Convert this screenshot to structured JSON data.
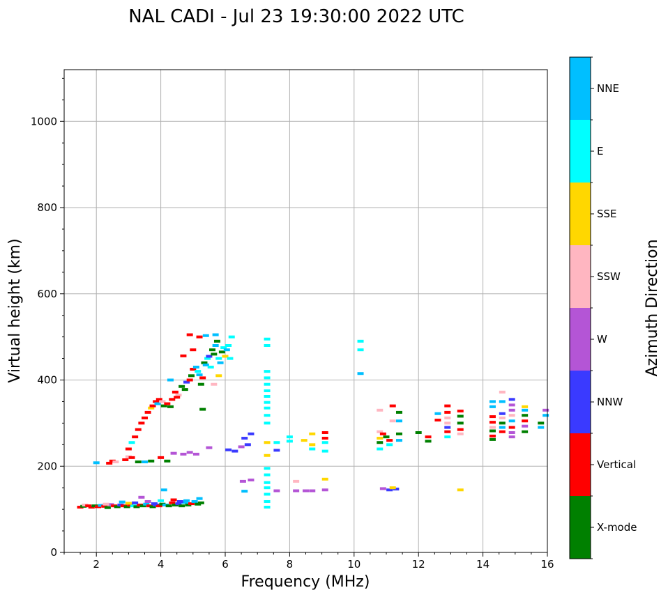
{
  "chart_data": {
    "type": "scatter",
    "title": "NAL CADI - Jul 23 19:30:00 2022 UTC",
    "xlabel": "Frequency (MHz)",
    "ylabel": "Virtual height (km)",
    "xlim": [
      1,
      16
    ],
    "ylim": [
      0,
      1120
    ],
    "xticks": [
      2,
      4,
      6,
      8,
      10,
      12,
      14,
      16
    ],
    "yticks": [
      0,
      200,
      400,
      600,
      800,
      1000
    ],
    "grid": true,
    "colorbar": {
      "label": "Azimuth Direction",
      "categories": [
        {
          "name": "X-mode",
          "color": "#008000"
        },
        {
          "name": "Vertical",
          "color": "#ff0000"
        },
        {
          "name": "NNW",
          "color": "#3a3aff"
        },
        {
          "name": "W",
          "color": "#b455d6"
        },
        {
          "name": "SSW",
          "color": "#ffb6c1"
        },
        {
          "name": "SSE",
          "color": "#ffd700"
        },
        {
          "name": "E",
          "color": "#00ffff"
        },
        {
          "name": "NNE",
          "color": "#00bfff"
        }
      ]
    },
    "points": [
      [
        1.5,
        105,
        "Vertical"
      ],
      [
        1.6,
        107,
        "X-mode"
      ],
      [
        1.65,
        110,
        "SSW"
      ],
      [
        1.75,
        108,
        "Vertical"
      ],
      [
        1.85,
        105,
        "Vertical"
      ],
      [
        1.95,
        108,
        "X-mode"
      ],
      [
        2.05,
        106,
        "Vertical"
      ],
      [
        2.15,
        109,
        "NNE"
      ],
      [
        2.25,
        107,
        "Vertical"
      ],
      [
        2.35,
        104,
        "X-mode"
      ],
      [
        2.45,
        111,
        "W"
      ],
      [
        2.55,
        108,
        "Vertical"
      ],
      [
        2.65,
        106,
        "X-mode"
      ],
      [
        2.75,
        110,
        "NNW"
      ],
      [
        2.85,
        108,
        "Vertical"
      ],
      [
        2.95,
        106,
        "X-mode"
      ],
      [
        3.05,
        110,
        "Vertical"
      ],
      [
        3.15,
        108,
        "E"
      ],
      [
        3.25,
        106,
        "X-mode"
      ],
      [
        3.35,
        110,
        "Vertical"
      ],
      [
        3.45,
        108,
        "X-mode"
      ],
      [
        3.55,
        112,
        "NNE"
      ],
      [
        3.65,
        108,
        "Vertical"
      ],
      [
        3.75,
        106,
        "X-mode"
      ],
      [
        3.85,
        110,
        "NNW"
      ],
      [
        3.95,
        108,
        "Vertical"
      ],
      [
        4.05,
        112,
        "X-mode"
      ],
      [
        4.15,
        110,
        "NNE"
      ],
      [
        4.25,
        108,
        "X-mode"
      ],
      [
        4.35,
        115,
        "Vertical"
      ],
      [
        4.45,
        110,
        "X-mode"
      ],
      [
        4.55,
        113,
        "NNW"
      ],
      [
        4.65,
        108,
        "X-mode"
      ],
      [
        4.75,
        116,
        "NNE"
      ],
      [
        4.85,
        110,
        "X-mode"
      ],
      [
        4.95,
        113,
        "Vertical"
      ],
      [
        5.05,
        118,
        "NNE"
      ],
      [
        5.15,
        112,
        "X-mode"
      ],
      [
        5.25,
        115,
        "X-mode"
      ],
      [
        2.8,
        117,
        "NNE"
      ],
      [
        3.2,
        115,
        "NNW"
      ],
      [
        3.6,
        118,
        "W"
      ],
      [
        4.0,
        120,
        "E"
      ],
      [
        4.4,
        122,
        "Vertical"
      ],
      [
        4.8,
        120,
        "NNE"
      ],
      [
        5.2,
        125,
        "NNE"
      ],
      [
        4.1,
        145,
        "NNE"
      ],
      [
        3.4,
        128,
        "W"
      ],
      [
        3.0,
        114,
        "SSE"
      ],
      [
        2.3,
        112,
        "SSW"
      ],
      [
        3.8,
        113,
        "NNW"
      ],
      [
        4.6,
        118,
        "NNW"
      ],
      [
        2.0,
        208,
        "NNE"
      ],
      [
        2.4,
        207,
        "Vertical"
      ],
      [
        2.5,
        212,
        "Vertical"
      ],
      [
        2.6,
        210,
        "SSW"
      ],
      [
        2.9,
        215,
        "Vertical"
      ],
      [
        3.0,
        222,
        "SSW"
      ],
      [
        3.1,
        220,
        "Vertical"
      ],
      [
        3.3,
        210,
        "X-mode"
      ],
      [
        3.5,
        210,
        "NNE"
      ],
      [
        3.7,
        212,
        "X-mode"
      ],
      [
        4.0,
        220,
        "Vertical"
      ],
      [
        4.2,
        212,
        "X-mode"
      ],
      [
        4.4,
        230,
        "W"
      ],
      [
        4.7,
        228,
        "W"
      ],
      [
        4.9,
        232,
        "W"
      ],
      [
        5.1,
        228,
        "W"
      ],
      [
        5.5,
        243,
        "W"
      ],
      [
        3.0,
        240,
        "Vertical"
      ],
      [
        3.1,
        255,
        "E"
      ],
      [
        3.2,
        268,
        "Vertical"
      ],
      [
        3.3,
        285,
        "Vertical"
      ],
      [
        3.4,
        300,
        "Vertical"
      ],
      [
        3.5,
        312,
        "Vertical"
      ],
      [
        3.6,
        325,
        "Vertical"
      ],
      [
        3.7,
        335,
        "SSE"
      ],
      [
        3.75,
        340,
        "Vertical"
      ],
      [
        3.85,
        350,
        "Vertical"
      ],
      [
        3.9,
        345,
        "NNE"
      ],
      [
        3.95,
        355,
        "Vertical"
      ],
      [
        4.05,
        350,
        "SSW"
      ],
      [
        4.1,
        340,
        "X-mode"
      ],
      [
        4.2,
        345,
        "Vertical"
      ],
      [
        4.3,
        338,
        "X-mode"
      ],
      [
        4.35,
        355,
        "Vertical"
      ],
      [
        4.45,
        372,
        "Vertical"
      ],
      [
        4.55,
        365,
        "SSW"
      ],
      [
        4.65,
        385,
        "X-mode"
      ],
      [
        4.75,
        378,
        "X-mode"
      ],
      [
        4.8,
        395,
        "NNW"
      ],
      [
        4.9,
        400,
        "Vertical"
      ],
      [
        4.95,
        410,
        "X-mode"
      ],
      [
        5.0,
        425,
        "Vertical"
      ],
      [
        5.1,
        430,
        "NNE"
      ],
      [
        5.15,
        420,
        "E"
      ],
      [
        5.2,
        412,
        "NNE"
      ],
      [
        5.25,
        390,
        "X-mode"
      ],
      [
        5.3,
        405,
        "Vertical"
      ],
      [
        5.35,
        440,
        "X-mode"
      ],
      [
        5.4,
        435,
        "NNE"
      ],
      [
        5.45,
        450,
        "E"
      ],
      [
        5.5,
        455,
        "NNW"
      ],
      [
        5.55,
        430,
        "E"
      ],
      [
        5.6,
        470,
        "X-mode"
      ],
      [
        5.65,
        460,
        "X-mode"
      ],
      [
        5.7,
        480,
        "NNE"
      ],
      [
        5.75,
        490,
        "X-mode"
      ],
      [
        5.8,
        450,
        "E"
      ],
      [
        5.85,
        440,
        "NNE"
      ],
      [
        5.9,
        465,
        "X-mode"
      ],
      [
        5.95,
        475,
        "E"
      ],
      [
        6.0,
        455,
        "SSE"
      ],
      [
        6.05,
        470,
        "NNE"
      ],
      [
        6.1,
        480,
        "E"
      ],
      [
        6.15,
        450,
        "E"
      ],
      [
        6.2,
        500,
        "E"
      ],
      [
        5.0,
        470,
        "Vertical"
      ],
      [
        4.9,
        505,
        "Vertical"
      ],
      [
        5.2,
        500,
        "Vertical"
      ],
      [
        5.4,
        503,
        "NNE"
      ],
      [
        5.7,
        505,
        "NNE"
      ],
      [
        4.7,
        456,
        "Vertical"
      ],
      [
        5.65,
        390,
        "SSW"
      ],
      [
        5.8,
        410,
        "SSE"
      ],
      [
        5.3,
        332,
        "X-mode"
      ],
      [
        4.5,
        360,
        "Vertical"
      ],
      [
        4.3,
        400,
        "NNE"
      ],
      [
        6.1,
        238,
        "NNW"
      ],
      [
        6.3,
        235,
        "NNW"
      ],
      [
        6.5,
        245,
        "W"
      ],
      [
        6.6,
        265,
        "NNW"
      ],
      [
        6.7,
        250,
        "NNW"
      ],
      [
        6.8,
        275,
        "NNW"
      ],
      [
        6.55,
        165,
        "W"
      ],
      [
        6.8,
        168,
        "W"
      ],
      [
        6.6,
        142,
        "NNE"
      ],
      [
        7.3,
        495,
        "E"
      ],
      [
        7.3,
        480,
        "E"
      ],
      [
        7.3,
        420,
        "E"
      ],
      [
        7.3,
        405,
        "E"
      ],
      [
        7.3,
        390,
        "E"
      ],
      [
        7.3,
        375,
        "E"
      ],
      [
        7.3,
        362,
        "E"
      ],
      [
        7.3,
        348,
        "E"
      ],
      [
        7.3,
        335,
        "E"
      ],
      [
        7.3,
        318,
        "E"
      ],
      [
        7.3,
        300,
        "E"
      ],
      [
        7.3,
        255,
        "SSE"
      ],
      [
        7.3,
        225,
        "SSE"
      ],
      [
        7.3,
        195,
        "E"
      ],
      [
        7.3,
        180,
        "E"
      ],
      [
        7.3,
        162,
        "E"
      ],
      [
        7.3,
        150,
        "E"
      ],
      [
        7.3,
        135,
        "E"
      ],
      [
        7.3,
        118,
        "E"
      ],
      [
        7.3,
        105,
        "E"
      ],
      [
        7.6,
        255,
        "E"
      ],
      [
        7.6,
        237,
        "NNW"
      ],
      [
        7.6,
        143,
        "W"
      ],
      [
        8.0,
        268,
        "E"
      ],
      [
        8.0,
        258,
        "E"
      ],
      [
        8.2,
        165,
        "SSW"
      ],
      [
        8.2,
        143,
        "W"
      ],
      [
        8.45,
        260,
        "SSE"
      ],
      [
        8.5,
        143,
        "W"
      ],
      [
        8.7,
        275,
        "SSE"
      ],
      [
        8.7,
        250,
        "SSE"
      ],
      [
        8.7,
        240,
        "E"
      ],
      [
        8.7,
        143,
        "W"
      ],
      [
        9.1,
        278,
        "Vertical"
      ],
      [
        9.1,
        265,
        "Vertical"
      ],
      [
        9.1,
        255,
        "E"
      ],
      [
        9.1,
        235,
        "E"
      ],
      [
        9.1,
        170,
        "SSE"
      ],
      [
        9.1,
        145,
        "W"
      ],
      [
        10.2,
        490,
        "E"
      ],
      [
        10.2,
        470,
        "E"
      ],
      [
        10.2,
        415,
        "NNE"
      ],
      [
        10.8,
        330,
        "SSW"
      ],
      [
        10.8,
        280,
        "SSW"
      ],
      [
        10.8,
        265,
        "SSE"
      ],
      [
        10.8,
        255,
        "X-mode"
      ],
      [
        10.8,
        240,
        "E"
      ],
      [
        10.9,
        275,
        "Vertical"
      ],
      [
        11.0,
        268,
        "X-mode"
      ],
      [
        11.1,
        260,
        "Vertical"
      ],
      [
        11.1,
        250,
        "E"
      ],
      [
        11.2,
        340,
        "Vertical"
      ],
      [
        11.2,
        305,
        "SSW"
      ],
      [
        11.4,
        325,
        "X-mode"
      ],
      [
        11.4,
        305,
        "NNE"
      ],
      [
        11.4,
        275,
        "X-mode"
      ],
      [
        11.4,
        260,
        "NNE"
      ],
      [
        10.9,
        148,
        "W"
      ],
      [
        11.1,
        145,
        "NNW"
      ],
      [
        11.3,
        147,
        "NNW"
      ],
      [
        11.2,
        150,
        "SSE"
      ],
      [
        12.0,
        278,
        "X-mode"
      ],
      [
        12.3,
        268,
        "Vertical"
      ],
      [
        12.3,
        258,
        "X-mode"
      ],
      [
        12.6,
        322,
        "NNE"
      ],
      [
        12.6,
        307,
        "Vertical"
      ],
      [
        12.9,
        340,
        "Vertical"
      ],
      [
        12.9,
        325,
        "Vertical"
      ],
      [
        12.9,
        312,
        "SSW"
      ],
      [
        12.9,
        300,
        "SSW"
      ],
      [
        12.9,
        290,
        "NNW"
      ],
      [
        12.9,
        280,
        "Vertical"
      ],
      [
        12.9,
        268,
        "E"
      ],
      [
        13.3,
        328,
        "Vertical"
      ],
      [
        13.3,
        316,
        "X-mode"
      ],
      [
        13.3,
        300,
        "X-mode"
      ],
      [
        13.3,
        285,
        "Vertical"
      ],
      [
        13.3,
        275,
        "SSW"
      ],
      [
        13.3,
        145,
        "SSE"
      ],
      [
        14.3,
        350,
        "NNE"
      ],
      [
        14.3,
        338,
        "NNE"
      ],
      [
        14.3,
        315,
        "Vertical"
      ],
      [
        14.3,
        302,
        "Vertical"
      ],
      [
        14.3,
        290,
        "SSW"
      ],
      [
        14.3,
        282,
        "X-mode"
      ],
      [
        14.3,
        270,
        "Vertical"
      ],
      [
        14.3,
        262,
        "X-mode"
      ],
      [
        14.6,
        372,
        "SSW"
      ],
      [
        14.6,
        350,
        "NNE"
      ],
      [
        14.6,
        322,
        "NNW"
      ],
      [
        14.6,
        312,
        "SSW"
      ],
      [
        14.6,
        300,
        "X-mode"
      ],
      [
        14.6,
        290,
        "NNE"
      ],
      [
        14.6,
        280,
        "Vertical"
      ],
      [
        14.9,
        355,
        "NNW"
      ],
      [
        14.9,
        342,
        "W"
      ],
      [
        14.9,
        330,
        "W"
      ],
      [
        14.9,
        318,
        "SSW"
      ],
      [
        14.9,
        305,
        "NNE"
      ],
      [
        14.9,
        290,
        "Vertical"
      ],
      [
        14.9,
        278,
        "W"
      ],
      [
        14.9,
        268,
        "W"
      ],
      [
        15.3,
        338,
        "SSE"
      ],
      [
        15.3,
        330,
        "NNE"
      ],
      [
        15.3,
        318,
        "X-mode"
      ],
      [
        15.3,
        305,
        "Vertical"
      ],
      [
        15.3,
        293,
        "W"
      ],
      [
        15.3,
        280,
        "X-mode"
      ],
      [
        15.8,
        300,
        "X-mode"
      ],
      [
        15.8,
        290,
        "NNE"
      ],
      [
        15.95,
        330,
        "W"
      ],
      [
        15.95,
        318,
        "NNE"
      ]
    ]
  }
}
